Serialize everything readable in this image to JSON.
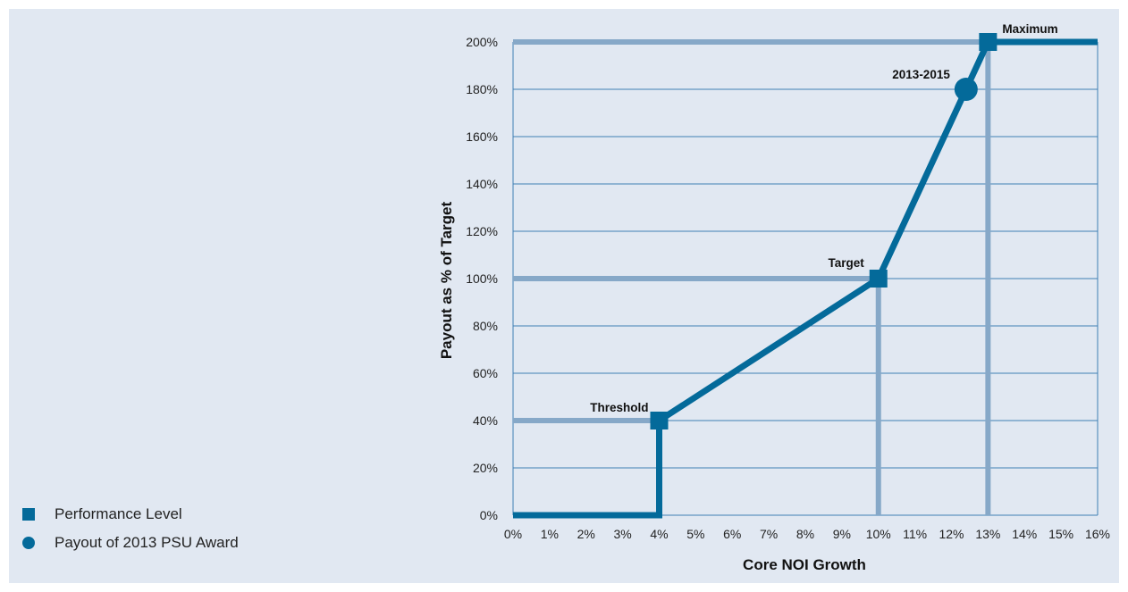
{
  "chart_data": {
    "type": "line",
    "xlabel": "Core NOI Growth",
    "ylabel": "Payout as % of Target",
    "xlim": [
      0,
      16
    ],
    "ylim": [
      0,
      200
    ],
    "x_ticks": [
      "0%",
      "1%",
      "2%",
      "3%",
      "4%",
      "5%",
      "6%",
      "7%",
      "8%",
      "9%",
      "10%",
      "11%",
      "12%",
      "13%",
      "14%",
      "15%",
      "16%"
    ],
    "y_ticks": [
      "0%",
      "20%",
      "40%",
      "60%",
      "80%",
      "100%",
      "120%",
      "140%",
      "160%",
      "180%",
      "200%"
    ],
    "grid": "horizontal",
    "payout_curve": [
      {
        "x": 0,
        "y": 0
      },
      {
        "x": 4,
        "y": 0
      },
      {
        "x": 4,
        "y": 40
      },
      {
        "x": 10,
        "y": 100
      },
      {
        "x": 13,
        "y": 200
      },
      {
        "x": 16,
        "y": 200
      }
    ],
    "performance_levels": [
      {
        "label": "Threshold",
        "x": 4,
        "y": 40
      },
      {
        "label": "Target",
        "x": 10,
        "y": 100
      },
      {
        "label": "Maximum",
        "x": 13,
        "y": 200
      }
    ],
    "payout_point": {
      "label": "2013-2015",
      "x": 12.4,
      "y": 180
    },
    "legend": [
      {
        "label": "Performance Level",
        "marker": "square"
      },
      {
        "label": "Payout of 2013 PSU Award",
        "marker": "circle"
      }
    ],
    "legend_placement": "bottom-left",
    "colors": {
      "line": "#046a9a",
      "reference": "#86a8c8",
      "grid": "#3f7fb4",
      "background": "#e1e8f2"
    }
  }
}
